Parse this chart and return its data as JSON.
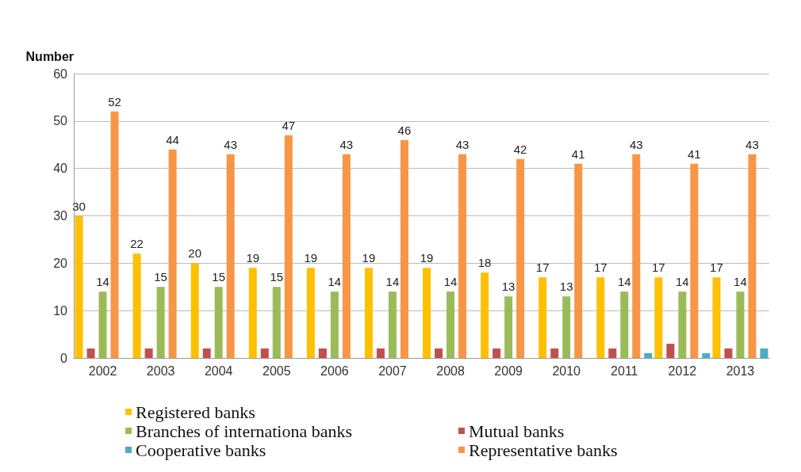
{
  "chart_data": {
    "type": "bar",
    "ylabel": "Number",
    "categories": [
      "2002",
      "2003",
      "2004",
      "2005",
      "2006",
      "2007",
      "2008",
      "2009",
      "2010",
      "2011",
      "2012",
      "2013"
    ],
    "series": [
      {
        "name": "Registered banks",
        "color": "#ffc000",
        "values": [
          30,
          22,
          20,
          19,
          19,
          19,
          19,
          18,
          17,
          17,
          17,
          17
        ],
        "value_labels": [
          "30",
          "22",
          "20",
          "19",
          "19",
          "19",
          "19",
          "18",
          "17",
          "17",
          "17",
          "17"
        ]
      },
      {
        "name": "Mutual banks",
        "color": "#c0504d",
        "values": [
          2,
          2,
          2,
          2,
          2,
          2,
          2,
          2,
          2,
          2,
          3,
          2
        ]
      },
      {
        "name": "Branches of internationa banks",
        "color": "#9bbb59",
        "values": [
          14,
          15,
          15,
          15,
          14,
          14,
          14,
          13,
          13,
          14,
          14,
          14
        ],
        "value_labels": [
          "14",
          "15",
          "15",
          "15",
          "14",
          "14",
          "14",
          "13",
          "13",
          "14",
          "14",
          "14"
        ]
      },
      {
        "name": "Representative banks",
        "color": "#f79646",
        "values": [
          52,
          44,
          43,
          47,
          43,
          46,
          43,
          42,
          41,
          43,
          41,
          43
        ],
        "value_labels": [
          "52",
          "44",
          "43",
          "47",
          "43",
          "46",
          "43",
          "42",
          "41",
          "43",
          "41",
          "43"
        ]
      },
      {
        "name": "Cooperative banks",
        "color": "#4bacc6",
        "values": [
          0,
          0,
          0,
          0,
          0,
          0,
          0,
          0,
          0,
          1,
          1,
          2
        ]
      }
    ],
    "ylim": [
      0,
      60
    ],
    "yticks": [
      0,
      10,
      20,
      30,
      40,
      50,
      60
    ],
    "grid": "y",
    "legend": "bottom"
  }
}
